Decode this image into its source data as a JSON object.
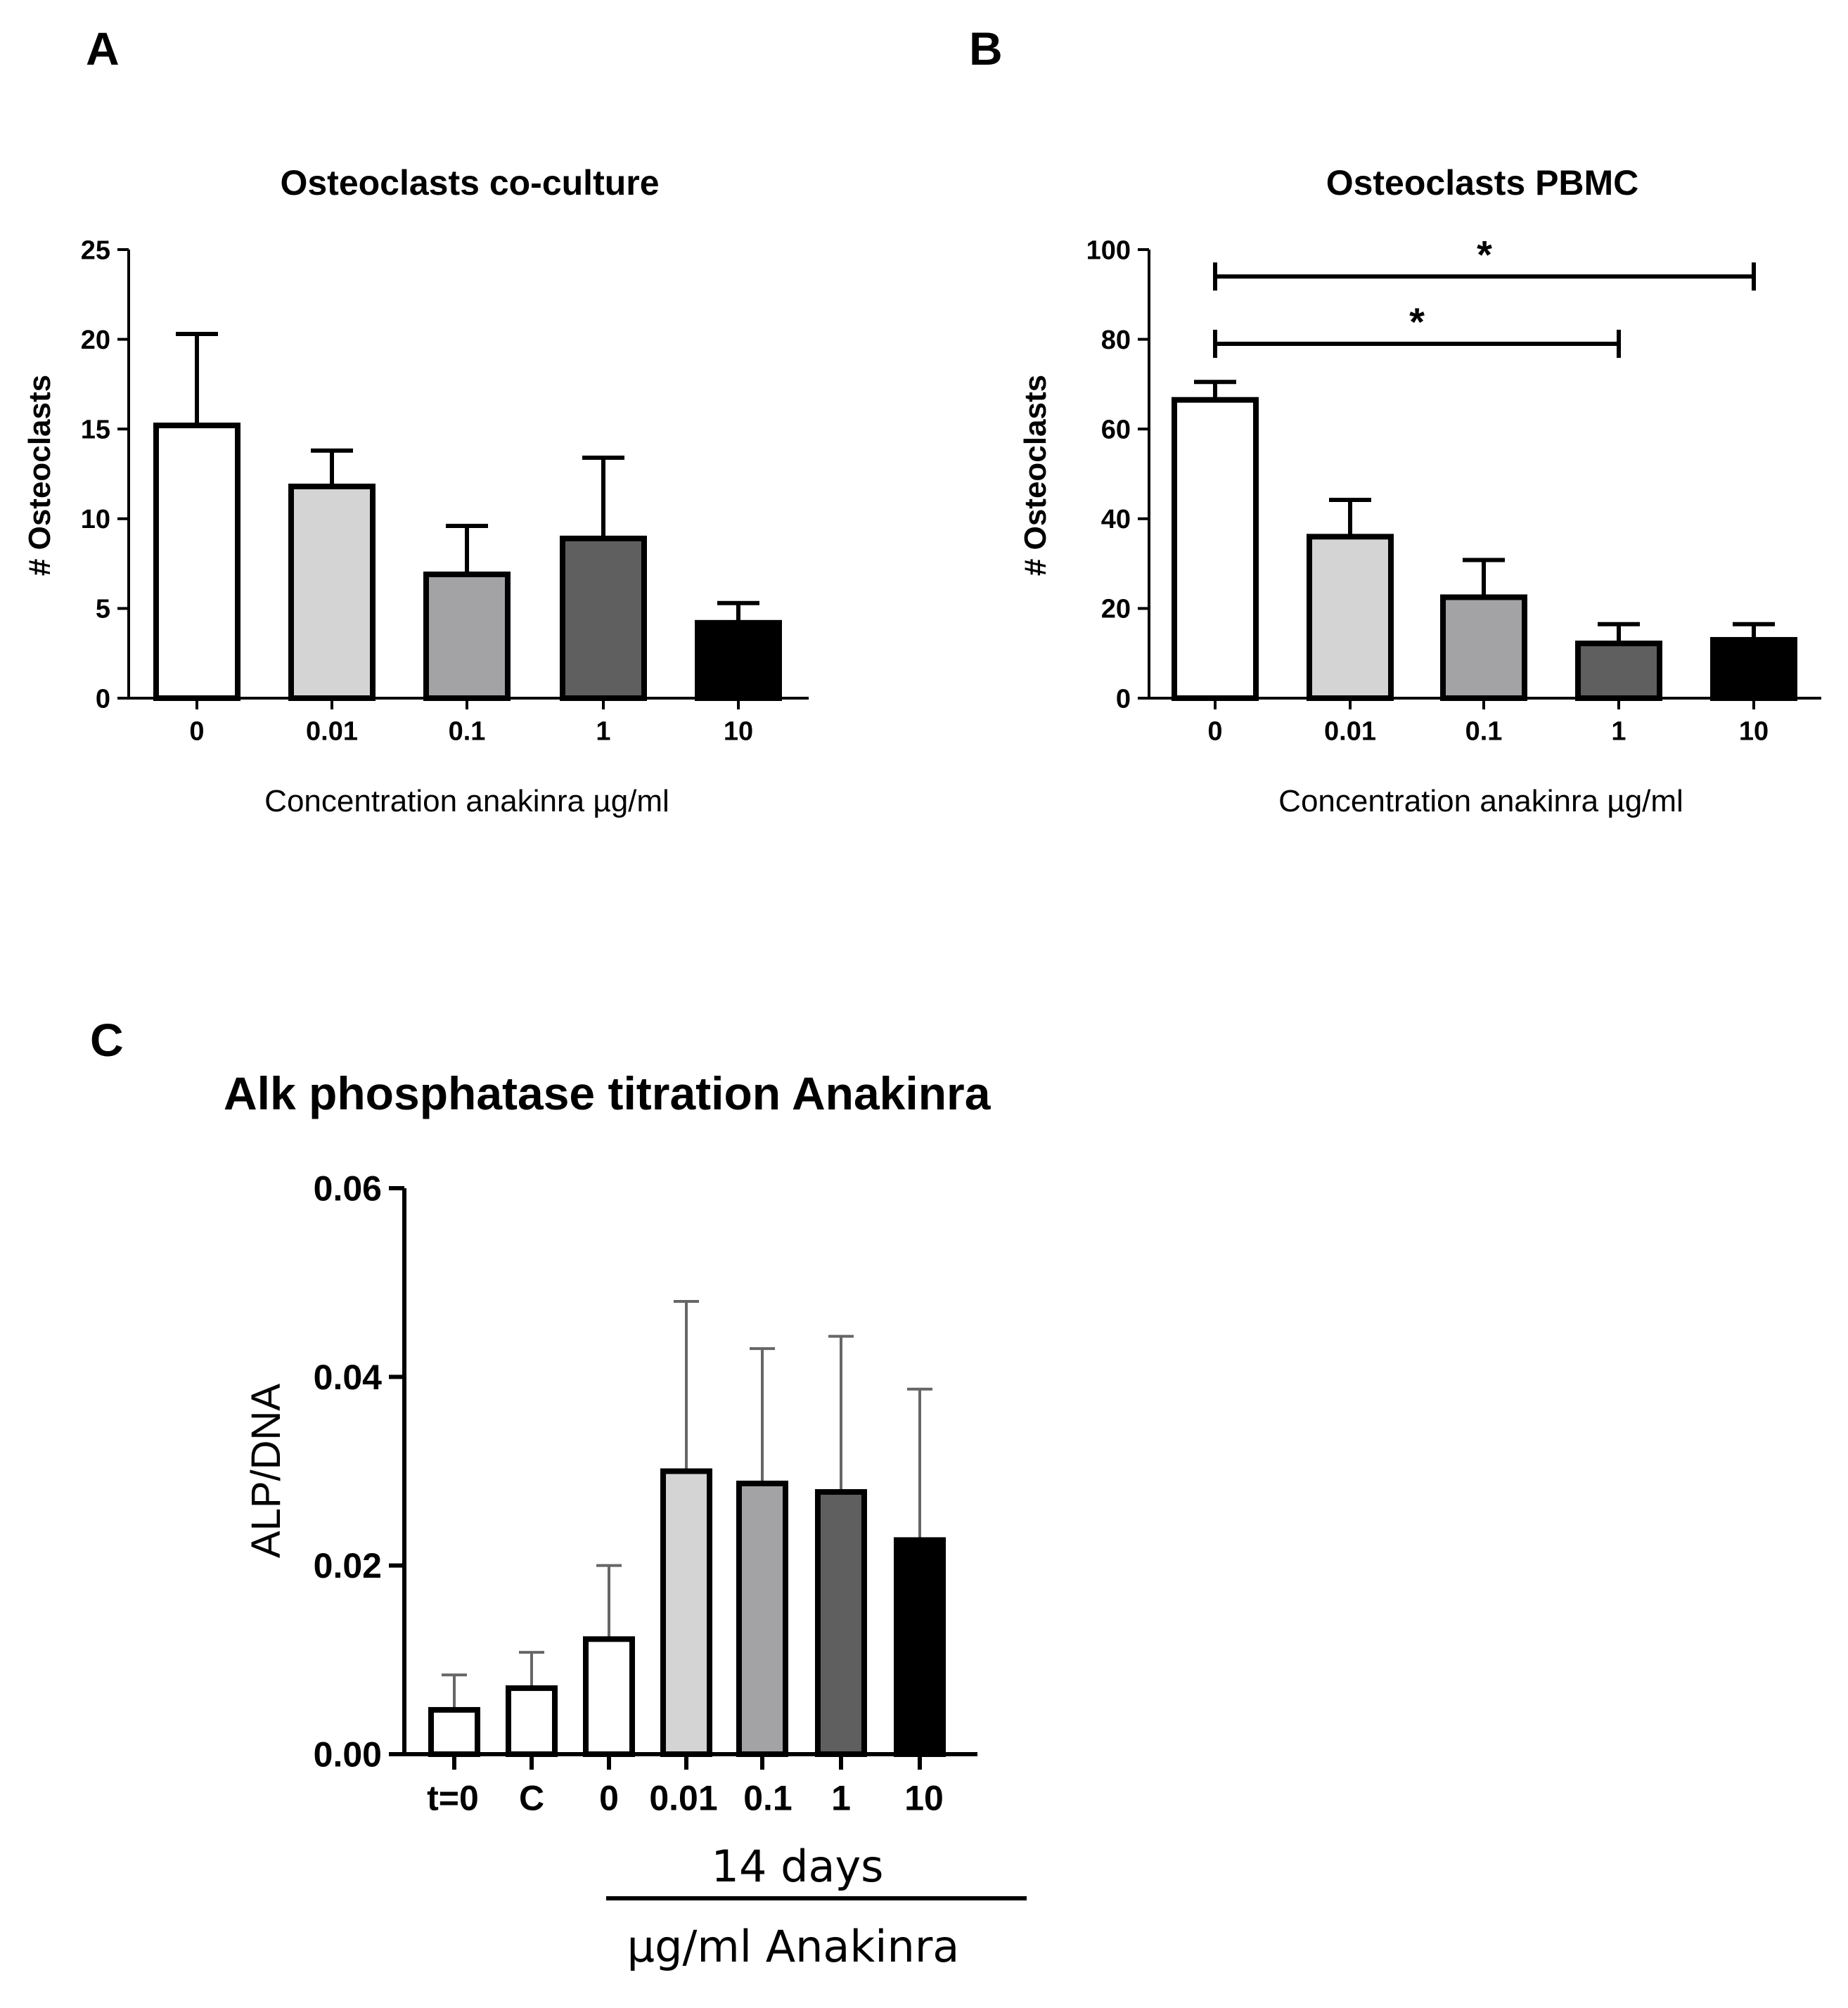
{
  "panels": {
    "A": {
      "letter": "A"
    },
    "B": {
      "letter": "B"
    },
    "C": {
      "letter": "C"
    }
  },
  "colors": {
    "c0": "#ffffff",
    "c001": "#d4d4d4",
    "c01": "#a3a3a6",
    "c1": "#5f5f5f",
    "c10": "#000000"
  },
  "chart_data": [
    {
      "panel": "A",
      "type": "bar",
      "title": "Osteoclasts co-culture",
      "xlabel": "Concentration anakinra µg/ml",
      "ylabel": "# Osteoclasts",
      "categories": [
        "0",
        "0.01",
        "0.1",
        "1",
        "10"
      ],
      "values": [
        15.2,
        11.8,
        6.9,
        8.9,
        4.2
      ],
      "errors": [
        5.1,
        2.0,
        2.7,
        4.5,
        1.1
      ],
      "ylim": [
        0,
        25
      ],
      "yticks": [
        "0",
        "5",
        "10",
        "15",
        "20",
        "25"
      ],
      "significance": []
    },
    {
      "panel": "B",
      "type": "bar",
      "title": "Osteoclasts PBMC",
      "xlabel": "Concentration anakinra µg/ml",
      "ylabel": "# Osteoclasts",
      "categories": [
        "0",
        "0.01",
        "0.1",
        "1",
        "10"
      ],
      "values": [
        66.5,
        36.0,
        22.5,
        12.2,
        13.0
      ],
      "errors": [
        4.0,
        8.2,
        8.3,
        4.3,
        3.5
      ],
      "ylim": [
        0,
        100
      ],
      "yticks": [
        "0",
        "20",
        "40",
        "60",
        "80",
        "100"
      ],
      "significance": [
        {
          "from": "0",
          "to": "10",
          "y": 94,
          "label": "*"
        },
        {
          "from": "0",
          "to": "1",
          "y": 79,
          "label": "*"
        }
      ]
    },
    {
      "panel": "C",
      "type": "bar",
      "title": "Alk phosphatase titration Anakinra",
      "xlabel": "µg/ml Anakinra",
      "group_label": "14 days",
      "ylabel": "ALP/DNA",
      "categories": [
        "t=0",
        "C",
        "0",
        "0.01",
        "0.1",
        "1",
        "10"
      ],
      "values": [
        0.0047,
        0.007,
        0.0122,
        0.03,
        0.0287,
        0.0278,
        0.0227
      ],
      "errors": [
        0.0037,
        0.0038,
        0.0078,
        0.018,
        0.0143,
        0.0165,
        0.016
      ],
      "ylim": [
        0,
        0.06
      ],
      "yticks": [
        "0.00",
        "0.02",
        "0.04",
        "0.06"
      ]
    }
  ]
}
